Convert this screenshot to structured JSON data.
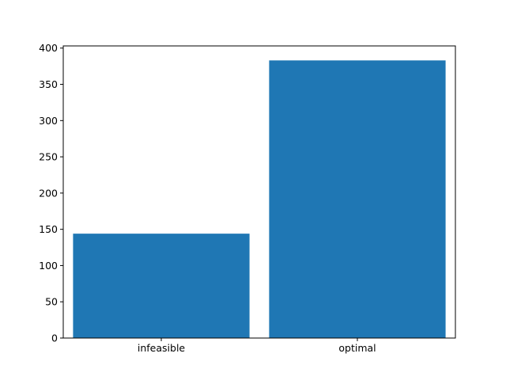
{
  "chart_data": {
    "type": "bar",
    "categories": [
      "infeasible",
      "optimal"
    ],
    "values": [
      144,
      383
    ],
    "title": "",
    "xlabel": "",
    "ylabel": "",
    "ylim": [
      0,
      403
    ],
    "yticks": [
      0,
      50,
      100,
      150,
      200,
      250,
      300,
      350,
      400
    ],
    "grid": false,
    "legend": "none",
    "bar_color": "#1f77b4"
  }
}
